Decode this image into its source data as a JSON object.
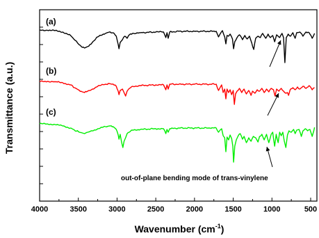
{
  "chart_data": {
    "type": "line",
    "xlabel": "Wavenumber (cm",
    "xlabel_sup": "-1",
    "xlabel_close": ")",
    "ylabel": "Transmittance (a.u.)",
    "xlim": [
      4000,
      450
    ],
    "x_reversed": true,
    "x_ticks": [
      4000,
      3500,
      3000,
      2500,
      2000,
      1500,
      1000,
      500
    ],
    "x_tick_labels": [
      "4000",
      "3500",
      "3000",
      "2500",
      "2000",
      "1500",
      "1000",
      "500"
    ],
    "y_ticks_count": 10,
    "grid": false,
    "series": [
      {
        "label": "(a)",
        "color": "#000000",
        "baseline": 42,
        "points": [
          [
            4000,
            43
          ],
          [
            3900,
            43.5
          ],
          [
            3800,
            44
          ],
          [
            3700,
            46
          ],
          [
            3600,
            51
          ],
          [
            3550,
            57
          ],
          [
            3500,
            63
          ],
          [
            3450,
            68
          ],
          [
            3420,
            69
          ],
          [
            3380,
            67
          ],
          [
            3320,
            61
          ],
          [
            3250,
            53
          ],
          [
            3150,
            48
          ],
          [
            3100,
            46
          ],
          [
            3050,
            47
          ],
          [
            3010,
            52
          ],
          [
            2985,
            64
          ],
          [
            2975,
            70
          ],
          [
            2960,
            61
          ],
          [
            2930,
            57
          ],
          [
            2900,
            52
          ],
          [
            2870,
            55
          ],
          [
            2850,
            51
          ],
          [
            2800,
            48
          ],
          [
            2700,
            47
          ],
          [
            2500,
            46
          ],
          [
            2400,
            46
          ],
          [
            2370,
            54
          ],
          [
            2355,
            47
          ],
          [
            2340,
            55
          ],
          [
            2320,
            46
          ],
          [
            2200,
            45
          ],
          [
            2000,
            45
          ],
          [
            1800,
            45
          ],
          [
            1720,
            45
          ],
          [
            1690,
            53
          ],
          [
            1670,
            49
          ],
          [
            1640,
            44
          ],
          [
            1610,
            53
          ],
          [
            1595,
            63
          ],
          [
            1580,
            51
          ],
          [
            1560,
            52
          ],
          [
            1540,
            49
          ],
          [
            1510,
            56
          ],
          [
            1495,
            70
          ],
          [
            1480,
            60
          ],
          [
            1450,
            54
          ],
          [
            1420,
            50
          ],
          [
            1380,
            57
          ],
          [
            1350,
            51
          ],
          [
            1320,
            56
          ],
          [
            1290,
            52
          ],
          [
            1260,
            62
          ],
          [
            1235,
            71
          ],
          [
            1210,
            55
          ],
          [
            1180,
            52
          ],
          [
            1150,
            54
          ],
          [
            1120,
            48
          ],
          [
            1080,
            55
          ],
          [
            1050,
            49
          ],
          [
            1020,
            54
          ],
          [
            990,
            51
          ],
          [
            965,
            60
          ],
          [
            940,
            50
          ],
          [
            900,
            54
          ],
          [
            870,
            48
          ],
          [
            850,
            54
          ],
          [
            833,
            90
          ],
          [
            815,
            54
          ],
          [
            790,
            49
          ],
          [
            760,
            52
          ],
          [
            730,
            47
          ],
          [
            700,
            55
          ],
          [
            680,
            47
          ],
          [
            640,
            46
          ],
          [
            600,
            52
          ],
          [
            560,
            46
          ],
          [
            520,
            47
          ],
          [
            480,
            55
          ],
          [
            450,
            48
          ]
        ]
      },
      {
        "label": "(b)",
        "color": "#ff0000",
        "baseline": 117,
        "points": [
          [
            4000,
            117
          ],
          [
            3900,
            117
          ],
          [
            3800,
            117.5
          ],
          [
            3700,
            119
          ],
          [
            3600,
            122
          ],
          [
            3550,
            126
          ],
          [
            3500,
            129
          ],
          [
            3450,
            132
          ],
          [
            3420,
            133
          ],
          [
            3380,
            131
          ],
          [
            3320,
            128
          ],
          [
            3250,
            124
          ],
          [
            3150,
            121
          ],
          [
            3100,
            120
          ],
          [
            3050,
            121
          ],
          [
            3010,
            124
          ],
          [
            2985,
            131
          ],
          [
            2975,
            136
          ],
          [
            2960,
            130
          ],
          [
            2930,
            128
          ],
          [
            2910,
            133
          ],
          [
            2890,
            138
          ],
          [
            2870,
            131
          ],
          [
            2850,
            128
          ],
          [
            2800,
            124
          ],
          [
            2700,
            123
          ],
          [
            2500,
            122
          ],
          [
            2400,
            122
          ],
          [
            2370,
            129
          ],
          [
            2355,
            122
          ],
          [
            2340,
            128
          ],
          [
            2320,
            121
          ],
          [
            2200,
            121
          ],
          [
            2000,
            121
          ],
          [
            1800,
            121
          ],
          [
            1720,
            121
          ],
          [
            1690,
            130
          ],
          [
            1670,
            126
          ],
          [
            1650,
            122
          ],
          [
            1630,
            133
          ],
          [
            1610,
            128
          ],
          [
            1595,
            142
          ],
          [
            1580,
            128
          ],
          [
            1560,
            133
          ],
          [
            1540,
            129
          ],
          [
            1520,
            136
          ],
          [
            1500,
            130
          ],
          [
            1485,
            150
          ],
          [
            1470,
            135
          ],
          [
            1450,
            131
          ],
          [
            1420,
            127
          ],
          [
            1390,
            133
          ],
          [
            1360,
            128
          ],
          [
            1330,
            135
          ],
          [
            1300,
            130
          ],
          [
            1270,
            137
          ],
          [
            1250,
            131
          ],
          [
            1220,
            134
          ],
          [
            1190,
            129
          ],
          [
            1160,
            131
          ],
          [
            1130,
            127
          ],
          [
            1100,
            133
          ],
          [
            1070,
            128
          ],
          [
            1040,
            132
          ],
          [
            1010,
            127
          ],
          [
            980,
            129
          ],
          [
            960,
            138
          ],
          [
            940,
            128
          ],
          [
            910,
            131
          ],
          [
            880,
            127
          ],
          [
            850,
            131
          ],
          [
            820,
            134
          ],
          [
            800,
            133
          ],
          [
            785,
            137
          ],
          [
            765,
            129
          ],
          [
            730,
            126
          ],
          [
            700,
            129
          ],
          [
            670,
            125
          ],
          [
            640,
            128
          ],
          [
            600,
            124
          ],
          [
            560,
            127
          ],
          [
            520,
            123
          ],
          [
            480,
            129
          ],
          [
            450,
            126
          ]
        ]
      },
      {
        "label": "(c)",
        "color": "#00ee00",
        "baseline": 177,
        "points": [
          [
            4000,
            178
          ],
          [
            3900,
            178
          ],
          [
            3800,
            179
          ],
          [
            3700,
            181
          ],
          [
            3600,
            184
          ],
          [
            3550,
            187
          ],
          [
            3500,
            189
          ],
          [
            3450,
            191
          ],
          [
            3420,
            192
          ],
          [
            3380,
            190
          ],
          [
            3320,
            188
          ],
          [
            3250,
            185
          ],
          [
            3150,
            182
          ],
          [
            3100,
            181
          ],
          [
            3050,
            182
          ],
          [
            3010,
            186
          ],
          [
            2985,
            194
          ],
          [
            2975,
            200
          ],
          [
            2960,
            193
          ],
          [
            2940,
            205
          ],
          [
            2925,
            212
          ],
          [
            2910,
            203
          ],
          [
            2890,
            198
          ],
          [
            2870,
            192
          ],
          [
            2800,
            187
          ],
          [
            2700,
            186
          ],
          [
            2500,
            185
          ],
          [
            2400,
            185
          ],
          [
            2370,
            192
          ],
          [
            2355,
            186
          ],
          [
            2340,
            190
          ],
          [
            2320,
            185
          ],
          [
            2200,
            184
          ],
          [
            2000,
            184
          ],
          [
            1800,
            184
          ],
          [
            1720,
            184
          ],
          [
            1690,
            190
          ],
          [
            1670,
            187
          ],
          [
            1650,
            185
          ],
          [
            1630,
            195
          ],
          [
            1610,
            198
          ],
          [
            1595,
            218
          ],
          [
            1580,
            197
          ],
          [
            1560,
            201
          ],
          [
            1540,
            194
          ],
          [
            1520,
            199
          ],
          [
            1505,
            210
          ],
          [
            1495,
            233
          ],
          [
            1480,
            210
          ],
          [
            1460,
            201
          ],
          [
            1440,
            196
          ],
          [
            1410,
            192
          ],
          [
            1380,
            200
          ],
          [
            1360,
            196
          ],
          [
            1330,
            205
          ],
          [
            1300,
            198
          ],
          [
            1270,
            203
          ],
          [
            1240,
            196
          ],
          [
            1210,
            198
          ],
          [
            1180,
            204
          ],
          [
            1160,
            196
          ],
          [
            1130,
            193
          ],
          [
            1100,
            201
          ],
          [
            1070,
            193
          ],
          [
            1040,
            205
          ],
          [
            1010,
            193
          ],
          [
            990,
            190
          ],
          [
            965,
            210
          ],
          [
            945,
            193
          ],
          [
            920,
            205
          ],
          [
            900,
            190
          ],
          [
            880,
            195
          ],
          [
            860,
            190
          ],
          [
            840,
            203
          ],
          [
            820,
            212
          ],
          [
            800,
            194
          ],
          [
            780,
            188
          ],
          [
            750,
            190
          ],
          [
            720,
            186
          ],
          [
            700,
            192
          ],
          [
            680,
            187
          ],
          [
            650,
            186
          ],
          [
            620,
            196
          ],
          [
            600,
            188
          ],
          [
            570,
            185
          ],
          [
            540,
            188
          ],
          [
            510,
            186
          ],
          [
            480,
            196
          ],
          [
            460,
            188
          ],
          [
            450,
            183
          ]
        ]
      }
    ],
    "annotation": {
      "text": "out-of-plane bending mode of trans-vinylene",
      "x": 1030,
      "arrow_target_x": 965
    }
  }
}
